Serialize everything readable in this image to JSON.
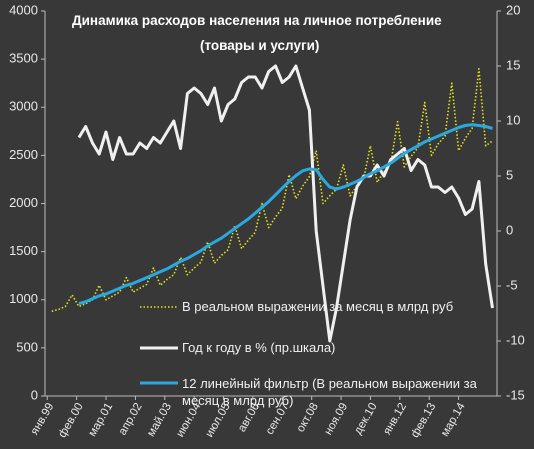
{
  "chart_data": {
    "type": "line",
    "title": "Динамика расходов населения на личное потребление",
    "subtitle": "(товары и услуги)",
    "x": [
      2,
      5,
      8,
      11,
      14,
      17,
      20,
      23,
      26,
      29,
      32,
      35,
      38,
      41,
      44,
      47,
      50,
      53,
      56,
      59,
      62,
      65,
      68,
      71,
      74,
      77,
      80,
      83,
      86,
      89,
      92,
      95,
      98,
      101,
      104,
      107,
      110,
      113,
      116,
      119,
      122,
      125,
      128,
      131,
      134,
      137,
      140,
      143,
      146,
      149,
      152,
      155,
      158,
      161,
      164,
      167,
      170,
      173,
      176,
      179,
      182,
      185,
      188,
      191,
      194,
      197
    ],
    "xlim": [
      -1,
      199
    ],
    "xticks": [
      {
        "value": 0,
        "label": "янв.99"
      },
      {
        "value": 13,
        "label": "фев.00"
      },
      {
        "value": 26,
        "label": "мар.01"
      },
      {
        "value": 39,
        "label": "апр.02"
      },
      {
        "value": 52,
        "label": "май.03"
      },
      {
        "value": 65,
        "label": "июн.04"
      },
      {
        "value": 78,
        "label": "июл.05"
      },
      {
        "value": 91,
        "label": "авг.06"
      },
      {
        "value": 104,
        "label": "сен.07"
      },
      {
        "value": 117,
        "label": "окт.08"
      },
      {
        "value": 130,
        "label": "ноя.09"
      },
      {
        "value": 143,
        "label": "дек.10"
      },
      {
        "value": 156,
        "label": "янв.12"
      },
      {
        "value": 169,
        "label": "фев.13"
      },
      {
        "value": 182,
        "label": "мар.14"
      }
    ],
    "ylim": [
      0,
      4000
    ],
    "yticks": [
      0,
      500,
      1000,
      1500,
      2000,
      2500,
      3000,
      3500,
      4000
    ],
    "y2lim": [
      -15,
      20
    ],
    "y2ticks": [
      -15,
      -10,
      -5,
      0,
      5,
      10,
      15,
      20
    ],
    "series": [
      {
        "name": "В реальном выражении за месяц в млрд руб",
        "color": "#e3e31c",
        "style": "dotted",
        "values": [
          880,
          900,
          930,
          1050,
          930,
          960,
          1000,
          1150,
          1000,
          1040,
          1080,
          1230,
          1080,
          1120,
          1160,
          1330,
          1150,
          1210,
          1260,
          1440,
          1260,
          1330,
          1390,
          1600,
          1380,
          1460,
          1520,
          1770,
          1530,
          1620,
          1700,
          2000,
          1750,
          1860,
          1950,
          2300,
          2050,
          2180,
          2280,
          2550,
          2000,
          2080,
          2150,
          2400,
          2080,
          2180,
          2260,
          2600,
          2220,
          2330,
          2420,
          2850,
          2380,
          2490,
          2580,
          3050,
          2500,
          2620,
          2700,
          3250,
          2550,
          2680,
          2780,
          3400,
          2600,
          2650
        ]
      },
      {
        "name": "Год к году в % (пр.шкала)",
        "color": "#f0f0f0",
        "style": "solid",
        "axis": "y2",
        "values": [
          null,
          null,
          null,
          null,
          8.5,
          9.5,
          8,
          7,
          9,
          6.5,
          8.5,
          7,
          7,
          8,
          7.5,
          8.5,
          8,
          9,
          10,
          7.5,
          12.5,
          13,
          12.5,
          11.5,
          13,
          10,
          11.5,
          12,
          13.5,
          14,
          14,
          13,
          14.5,
          15,
          13.5,
          14,
          15,
          13,
          11,
          0,
          -5,
          -10,
          -7,
          -3,
          1,
          4,
          5,
          5,
          6,
          5,
          6.5,
          7,
          7.5,
          5.5,
          6.5,
          6,
          4,
          4,
          3.5,
          4,
          3,
          1.5,
          2,
          4.5,
          -3,
          -7
        ]
      },
      {
        "name": "12 линейный фильтр (В реальном выражении за месяц в млрд руб)",
        "color": "#2aa9e0",
        "style": "solid",
        "values": [
          null,
          null,
          null,
          null,
          960,
          980,
          1010,
          1040,
          1060,
          1090,
          1120,
          1150,
          1170,
          1200,
          1230,
          1260,
          1290,
          1320,
          1360,
          1400,
          1430,
          1470,
          1510,
          1560,
          1600,
          1640,
          1690,
          1740,
          1790,
          1840,
          1900,
          1960,
          2020,
          2090,
          2160,
          2230,
          2290,
          2340,
          2360,
          2350,
          2250,
          2170,
          2150,
          2170,
          2200,
          2230,
          2270,
          2310,
          2340,
          2380,
          2420,
          2470,
          2520,
          2560,
          2600,
          2640,
          2670,
          2700,
          2730,
          2760,
          2790,
          2810,
          2820,
          2810,
          2800,
          2780
        ]
      }
    ]
  }
}
